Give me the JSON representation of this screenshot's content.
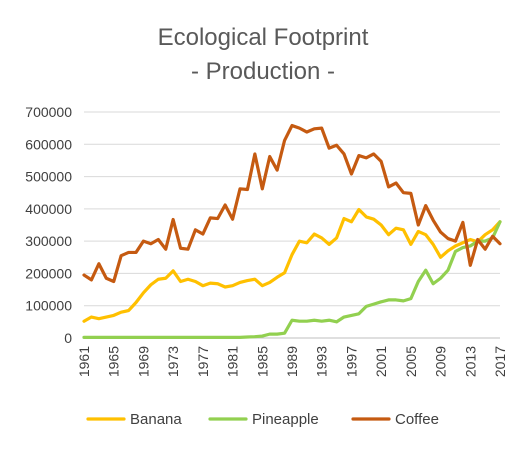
{
  "chart_data": {
    "type": "line",
    "title_lines": [
      "Ecological Footprint",
      "- Production -"
    ],
    "xlabel": "",
    "ylabel": "",
    "ylim": [
      0,
      700000
    ],
    "yticks": [
      0,
      100000,
      200000,
      300000,
      400000,
      500000,
      600000,
      700000
    ],
    "ytick_labels": [
      "0",
      "100000",
      "200000",
      "300000",
      "400000",
      "500000",
      "600000",
      "700000"
    ],
    "xtick_labels": [
      "1961",
      "1965",
      "1969",
      "1973",
      "1977",
      "1981",
      "1985",
      "1989",
      "1993",
      "1997",
      "2001",
      "2005",
      "2009",
      "2013",
      "2017"
    ],
    "grid": "horizontal",
    "legend_position": "bottom",
    "x": [
      1961,
      1962,
      1963,
      1964,
      1965,
      1966,
      1967,
      1968,
      1969,
      1970,
      1971,
      1972,
      1973,
      1974,
      1975,
      1976,
      1977,
      1978,
      1979,
      1980,
      1981,
      1982,
      1983,
      1984,
      1985,
      1986,
      1987,
      1988,
      1989,
      1990,
      1991,
      1992,
      1993,
      1994,
      1995,
      1996,
      1997,
      1998,
      1999,
      2000,
      2001,
      2002,
      2003,
      2004,
      2005,
      2006,
      2007,
      2008,
      2009,
      2010,
      2011,
      2012,
      2013,
      2014,
      2015,
      2016,
      2017
    ],
    "series": [
      {
        "name": "Banana",
        "color": "#ffc000",
        "values": [
          52000,
          65000,
          60000,
          65000,
          70000,
          80000,
          85000,
          110000,
          140000,
          165000,
          182000,
          185000,
          208000,
          175000,
          182000,
          175000,
          162000,
          170000,
          168000,
          158000,
          162000,
          172000,
          178000,
          182000,
          162000,
          172000,
          188000,
          202000,
          258000,
          300000,
          295000,
          322000,
          310000,
          290000,
          310000,
          370000,
          360000,
          398000,
          375000,
          368000,
          350000,
          320000,
          340000,
          335000,
          290000,
          330000,
          320000,
          290000,
          250000,
          270000,
          285000,
          295000,
          305000,
          298000,
          320000,
          335000,
          360000
        ]
      },
      {
        "name": "Pineapple",
        "color": "#92d050",
        "values": [
          2000,
          2000,
          2000,
          2000,
          2000,
          2000,
          2000,
          2000,
          2000,
          2000,
          2000,
          2000,
          2000,
          2000,
          2000,
          2000,
          2000,
          2000,
          2000,
          2000,
          2000,
          2000,
          3000,
          4000,
          6000,
          12000,
          12000,
          15000,
          55000,
          52000,
          52000,
          55000,
          52000,
          55000,
          50000,
          65000,
          70000,
          75000,
          98000,
          105000,
          112000,
          118000,
          118000,
          115000,
          122000,
          175000,
          210000,
          168000,
          185000,
          210000,
          268000,
          280000,
          285000,
          300000,
          300000,
          310000,
          360000
        ]
      },
      {
        "name": "Coffee",
        "color": "#c55a11",
        "values": [
          195000,
          180000,
          230000,
          185000,
          175000,
          255000,
          265000,
          265000,
          300000,
          292000,
          305000,
          275000,
          367000,
          278000,
          275000,
          335000,
          322000,
          372000,
          370000,
          412000,
          368000,
          462000,
          460000,
          570000,
          462000,
          562000,
          520000,
          612000,
          658000,
          650000,
          638000,
          648000,
          650000,
          588000,
          597000,
          570000,
          508000,
          565000,
          558000,
          570000,
          547000,
          468000,
          480000,
          450000,
          448000,
          350000,
          410000,
          365000,
          328000,
          308000,
          300000,
          358000,
          225000,
          305000,
          275000,
          315000,
          292000
        ]
      }
    ]
  }
}
